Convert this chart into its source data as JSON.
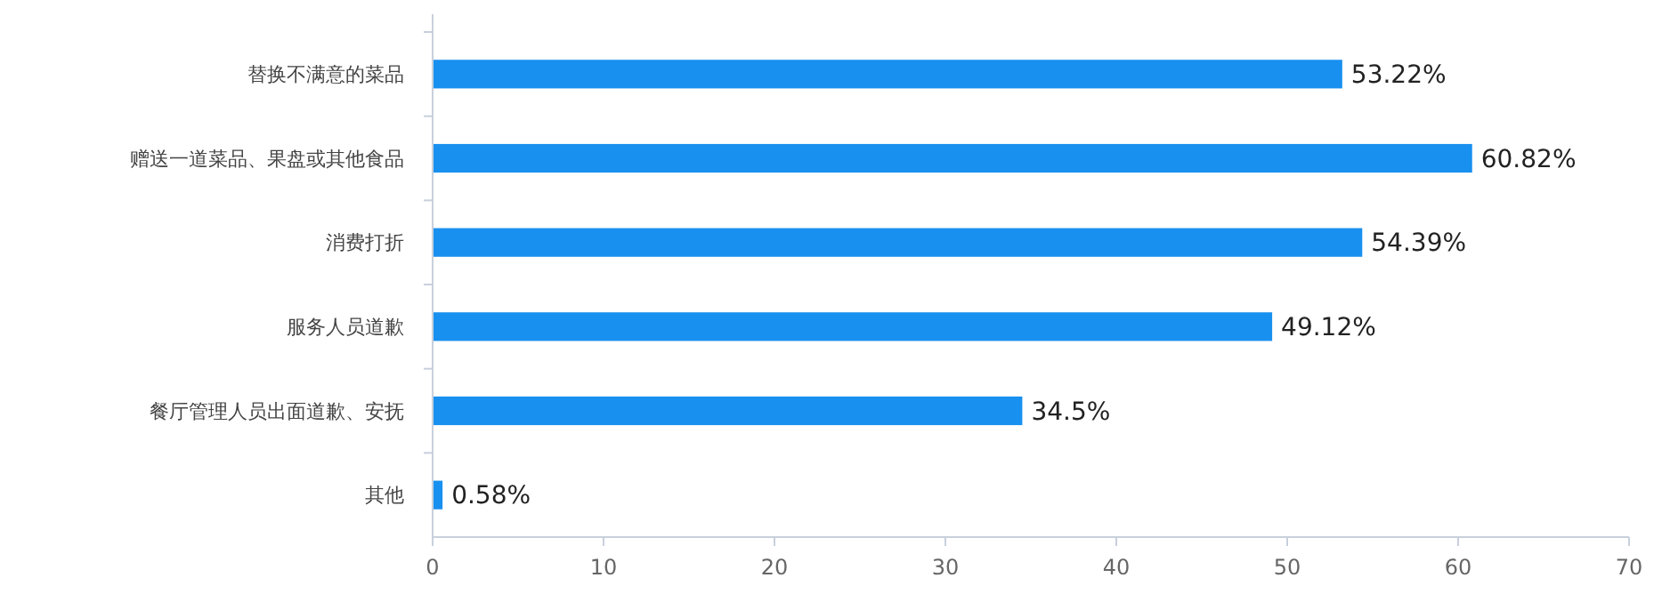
{
  "chart_data": {
    "type": "bar",
    "orientation": "horizontal",
    "categories": [
      "替换不满意的菜品",
      "赠送一道菜品、果盘或其他食品",
      "消费打折",
      "服务人员道歉",
      "餐厅管理人员出面道歉、安抚",
      "其他"
    ],
    "values": [
      53.22,
      60.82,
      54.39,
      49.12,
      34.5,
      0.58
    ],
    "value_labels": [
      "53.22%",
      "60.82%",
      "54.39%",
      "49.12%",
      "34.5%",
      "0.58%"
    ],
    "color": "#1890f0",
    "xlim": [
      0,
      70
    ],
    "xticks": [
      0,
      10,
      20,
      30,
      40,
      50,
      60,
      70
    ],
    "grid": false
  }
}
